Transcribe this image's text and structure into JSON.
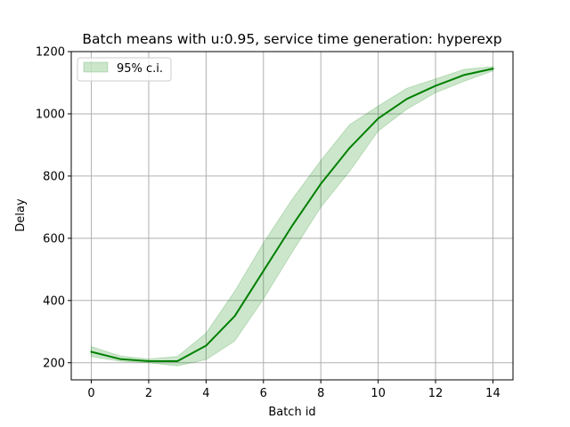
{
  "chart_data": {
    "type": "line",
    "title": "Batch means with u:0.95, service time generation: hyperexp",
    "xlabel": "Batch id",
    "ylabel": "Delay",
    "xlim": [
      -0.7,
      14.7
    ],
    "ylim": [
      145,
      1200
    ],
    "xticks": [
      0,
      2,
      4,
      6,
      8,
      10,
      12,
      14
    ],
    "xtick_labels": [
      "0",
      "2",
      "4",
      "6",
      "8",
      "10",
      "12",
      "14"
    ],
    "yticks": [
      200,
      400,
      600,
      800,
      1000,
      1200
    ],
    "ytick_labels": [
      "200",
      "400",
      "600",
      "800",
      "1000",
      "1200"
    ],
    "grid": true,
    "legend_position": "upper-left",
    "x": [
      0,
      1,
      2,
      3,
      4,
      5,
      6,
      7,
      8,
      9,
      10,
      11,
      12,
      13,
      14
    ],
    "series": [
      {
        "kind": "line",
        "values": [
          235,
          212,
          205,
          205,
          255,
          350,
          495,
          640,
          775,
          890,
          985,
          1048,
          1090,
          1125,
          1145
        ],
        "color": "#008000"
      },
      {
        "kind": "band",
        "name": "95% c.i.",
        "lower": [
          220,
          205,
          200,
          190,
          210,
          270,
          405,
          555,
          700,
          815,
          945,
          1015,
          1068,
          1105,
          1138
        ],
        "upper": [
          252,
          222,
          212,
          220,
          295,
          430,
          585,
          725,
          850,
          965,
          1025,
          1082,
          1112,
          1143,
          1152
        ],
        "color": "#008000",
        "opacity": 0.2
      }
    ]
  }
}
